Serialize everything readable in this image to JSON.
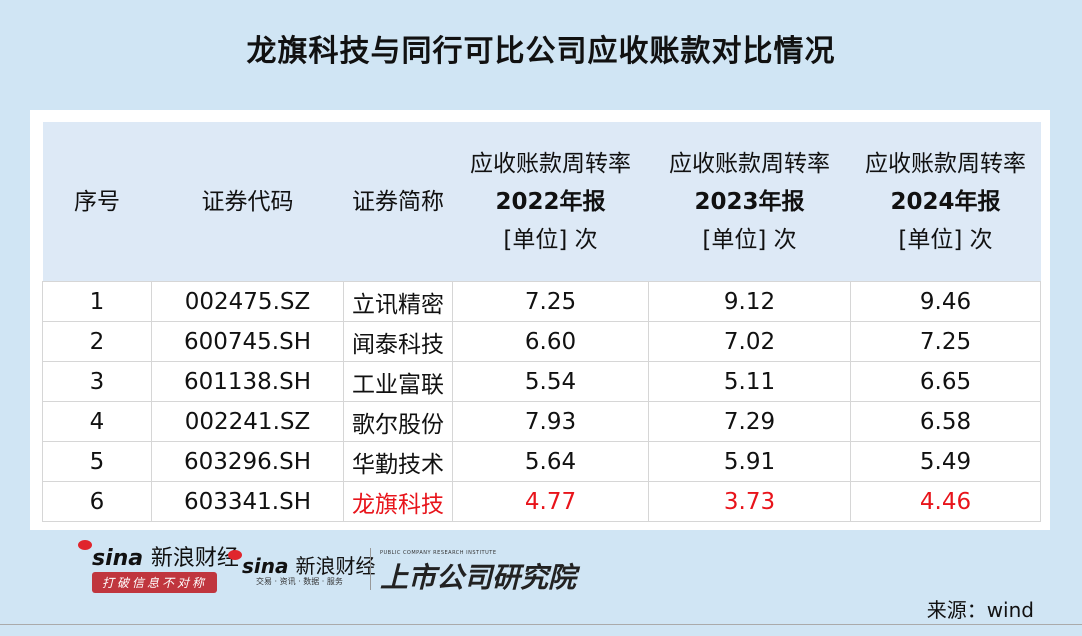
{
  "title": "龙旗科技与同行可比公司应收账款对比情况",
  "table": {
    "headers": [
      "序号",
      "证券代码",
      "证券简称",
      {
        "l1": "应收账款周转率",
        "l2": "2022年报",
        "l3": "[单位] 次"
      },
      {
        "l1": "应收账款周转率",
        "l2": "2023年报",
        "l3": "[单位] 次"
      },
      {
        "l1": "应收账款周转率",
        "l2": "2024年报",
        "l3": "[单位] 次"
      }
    ],
    "rows": [
      [
        "1",
        "002475.SZ",
        "立讯精密",
        "7.25",
        "9.12",
        "9.46"
      ],
      [
        "2",
        "600745.SH",
        "闻泰科技",
        "6.60",
        "7.02",
        "7.25"
      ],
      [
        "3",
        "601138.SH",
        "工业富联",
        "5.54",
        "5.11",
        "6.65"
      ],
      [
        "4",
        "002241.SZ",
        "歌尔股份",
        "7.93",
        "7.29",
        "6.58"
      ],
      [
        "5",
        "603296.SH",
        "华勤技术",
        "5.64",
        "5.91",
        "5.49"
      ],
      [
        "6",
        "603341.SH",
        "龙旗科技",
        "4.77",
        "3.73",
        "4.46"
      ]
    ],
    "highlight_row": 6,
    "highlight_color": "#e8141b"
  },
  "logos": {
    "sina1": "sina",
    "sina1_cn": "新浪财经",
    "sina1_slogan": "打破信息不对称",
    "sina2": "sina",
    "sina2_cn": "新浪财经",
    "sina2_slogan": "交易 · 资讯 · 数据 · 服务",
    "institute": "上市公司研究院",
    "institute_en": "PUBLIC COMPANY RESEARCH INSTITUTE"
  },
  "source": "来源：wind"
}
